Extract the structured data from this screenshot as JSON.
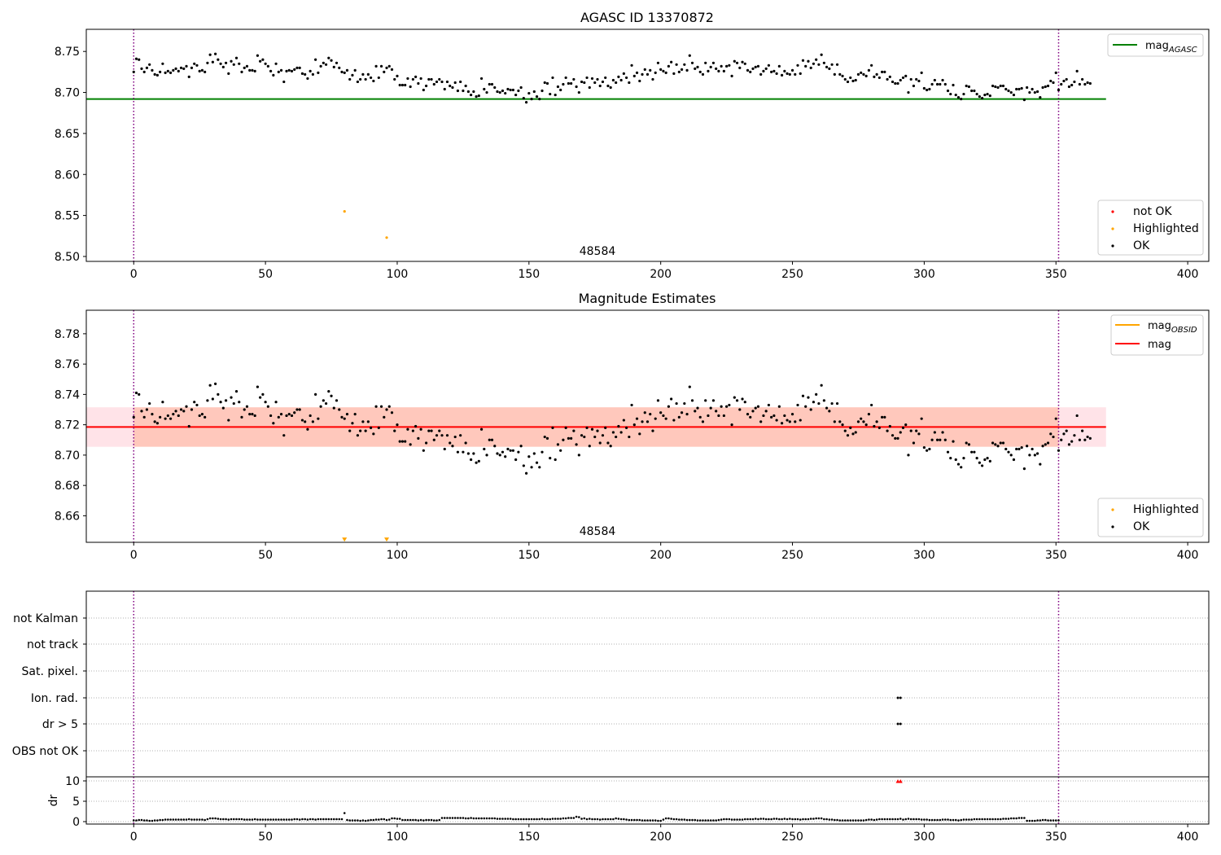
{
  "chart_data": [
    {
      "type": "scatter",
      "title": "AGASC ID 13370872",
      "xlim": [
        -18,
        408
      ],
      "ylim": [
        8.494,
        8.777
      ],
      "xticks": [
        0,
        50,
        100,
        150,
        200,
        250,
        300,
        350,
        400
      ],
      "yticks": [
        "8.50",
        "8.55",
        "8.60",
        "8.65",
        "8.70",
        "8.75"
      ],
      "vlines": [
        0,
        351
      ],
      "vline_color": "#800080",
      "hline": {
        "name": "mag_AGASC",
        "legend_main": "mag",
        "legend_sub": "AGASC",
        "y": 8.692,
        "x_range": [
          -18,
          369
        ],
        "color": "#008000"
      },
      "series": [
        {
          "name": "not OK",
          "color": "#ff0000",
          "points": []
        },
        {
          "name": "Highlighted",
          "color": "#ffa500",
          "points": [
            [
              80,
              8.555
            ],
            [
              96,
              8.523
            ]
          ]
        },
        {
          "name": "OK",
          "color": "#000000",
          "source": "ok_series"
        }
      ],
      "annotation": {
        "text": "48584",
        "x": 176,
        "y": 8.507
      },
      "legend_top": "top-right",
      "legend_bottom": "lower-right"
    },
    {
      "type": "scatter",
      "title": "Magnitude Estimates",
      "xlim": [
        -18,
        408
      ],
      "ylim": [
        8.6425,
        8.7955
      ],
      "xticks": [
        0,
        50,
        100,
        150,
        200,
        250,
        300,
        350,
        400
      ],
      "yticks": [
        "8.66",
        "8.68",
        "8.70",
        "8.72",
        "8.74",
        "8.76",
        "8.78"
      ],
      "vlines": [
        0,
        351
      ],
      "vline_color": "#800080",
      "lines": [
        {
          "name": "mag_OBSID",
          "legend_main": "mag",
          "legend_sub": "OBSID",
          "color": "#ffa500"
        },
        {
          "name": "mag",
          "legend_main": "mag",
          "y": 8.7185,
          "x_range": [
            -18,
            369
          ],
          "color": "#ff0000"
        }
      ],
      "bands": [
        {
          "color": "#ffc0cb",
          "opacity": 0.45,
          "y_range": [
            8.7055,
            8.7315
          ],
          "x_range": [
            -18,
            369
          ]
        },
        {
          "color": "#ffa07a",
          "opacity": 0.4,
          "y_range": [
            8.7055,
            8.7315
          ],
          "x_range": [
            0,
            351
          ]
        }
      ],
      "series": [
        {
          "name": "Highlighted",
          "color": "#ffa500",
          "marker": "triangle-down",
          "points": [
            [
              80,
              8.6435
            ],
            [
              96,
              8.6435
            ]
          ]
        },
        {
          "name": "OK",
          "color": "#000000",
          "source": "ok_series"
        }
      ],
      "annotation": {
        "text": "48584",
        "x": 176,
        "y": 8.65
      },
      "legend_top": "top-right",
      "legend_bottom": "lower-right"
    },
    {
      "type": "scatter",
      "title": "",
      "xlim": [
        -18,
        408
      ],
      "xticks": [
        0,
        50,
        100,
        150,
        200,
        250,
        300,
        350,
        400
      ],
      "vlines": [
        0,
        351
      ],
      "vline_color": "#800080",
      "flag_labels": [
        "not Kalman",
        "not track",
        "Sat. pixel.",
        "Ion. rad.",
        "dr > 5",
        "OBS not OK"
      ],
      "flag_points": {
        "Ion. rad.": [
          290,
          291
        ],
        "dr > 5": [
          290,
          291
        ]
      }
    },
    {
      "type": "scatter",
      "title": "",
      "ylabel": "dr",
      "xlim": [
        -18,
        408
      ],
      "ylim": [
        -0.6,
        11
      ],
      "xticks": [
        0,
        50,
        100,
        150,
        200,
        250,
        300,
        350,
        400
      ],
      "yticks": [
        "0",
        "5",
        "10"
      ],
      "vlines": [
        0,
        351
      ],
      "vline_color": "#800080",
      "series": [
        {
          "name": "dr",
          "color": "#000000",
          "source": "dr_series"
        },
        {
          "name": "dr > 10",
          "color": "#ff0000",
          "marker": "triangle-up",
          "points": [
            [
              290,
              9.9
            ],
            [
              291,
              9.9
            ]
          ]
        }
      ]
    }
  ],
  "ok_series": {
    "x_start": 0,
    "x_step": 1,
    "y": [
      8.725,
      8.741,
      8.74,
      8.729,
      8.725,
      8.73,
      8.734,
      8.727,
      8.722,
      8.721,
      8.725,
      8.735,
      8.724,
      8.726,
      8.724,
      8.727,
      8.729,
      8.726,
      8.73,
      8.729,
      8.732,
      8.719,
      8.73,
      8.735,
      8.733,
      8.726,
      8.727,
      8.725,
      8.736,
      8.746,
      8.737,
      8.747,
      8.74,
      8.735,
      8.731,
      8.736,
      8.723,
      8.738,
      8.734,
      8.742,
      8.735,
      8.725,
      8.73,
      8.732,
      8.727,
      8.727,
      8.726,
      8.745,
      8.738,
      8.74,
      8.735,
      8.732,
      8.726,
      8.721,
      8.735,
      8.725,
      8.727,
      8.713,
      8.726,
      8.727,
      8.726,
      8.728,
      8.73,
      8.73,
      8.723,
      8.722,
      8.717,
      8.726,
      8.722,
      8.74,
      8.724,
      8.732,
      8.736,
      8.734,
      8.742,
      8.739,
      8.731,
      8.736,
      8.73,
      8.725,
      8.724,
      8.727,
      8.716,
      8.721,
      8.727,
      8.713,
      8.716,
      8.722,
      8.716,
      8.722,
      8.718,
      8.714,
      8.732,
      8.718,
      8.732,
      8.725,
      8.73,
      8.732,
      8.728,
      8.716,
      8.72,
      8.709,
      8.709,
      8.709,
      8.717,
      8.707,
      8.716,
      8.719,
      8.711,
      8.717,
      8.703,
      8.708,
      8.716,
      8.716,
      8.71,
      8.713,
      8.716,
      8.713,
      8.704,
      8.713,
      8.708,
      8.706,
      8.712,
      8.702,
      8.713,
      8.702,
      8.708,
      8.701,
      8.697,
      8.701,
      8.695,
      8.696,
      8.717,
      8.704,
      8.7,
      8.71,
      8.71,
      8.706,
      8.701,
      8.7,
      8.702,
      8.699,
      8.704,
      8.703,
      8.703,
      8.697,
      8.702,
      8.706,
      8.693,
      8.688,
      8.699,
      8.692,
      8.701,
      8.695,
      8.692,
      8.702,
      8.712,
      8.711,
      8.698,
      8.718,
      8.697,
      8.707,
      8.703,
      8.71,
      8.718,
      8.711,
      8.711,
      8.716,
      8.707,
      8.7,
      8.713,
      8.712,
      8.718,
      8.706,
      8.717,
      8.712,
      8.716,
      8.708,
      8.713,
      8.718,
      8.708,
      8.706,
      8.715,
      8.712,
      8.719,
      8.715,
      8.723,
      8.718,
      8.712,
      8.733,
      8.72,
      8.724,
      8.714,
      8.722,
      8.728,
      8.722,
      8.727,
      8.716,
      8.724,
      8.736,
      8.728,
      8.726,
      8.724,
      8.732,
      8.737,
      8.723,
      8.734,
      8.725,
      8.728,
      8.734,
      8.727,
      8.745,
      8.736,
      8.729,
      8.731,
      8.725,
      8.722,
      8.736,
      8.726,
      8.731,
      8.736,
      8.729,
      8.726,
      8.732,
      8.726,
      8.732,
      8.733,
      8.72,
      8.738,
      8.736,
      8.73,
      8.737,
      8.735,
      8.727,
      8.725,
      8.729,
      8.731,
      8.732,
      8.722,
      8.726,
      8.729,
      8.733,
      8.725,
      8.726,
      8.723,
      8.732,
      8.721,
      8.726,
      8.723,
      8.722,
      8.727,
      8.722,
      8.733,
      8.723,
      8.739,
      8.732,
      8.738,
      8.73,
      8.735,
      8.74,
      8.734,
      8.746,
      8.736,
      8.731,
      8.729,
      8.734,
      8.722,
      8.734,
      8.722,
      8.72,
      8.716,
      8.713,
      8.718,
      8.714,
      8.715,
      8.722,
      8.724,
      8.722,
      8.72,
      8.727,
      8.733,
      8.719,
      8.722,
      8.718,
      8.725,
      8.725,
      8.716,
      8.719,
      8.713,
      8.711,
      8.711,
      8.715,
      8.718,
      8.72,
      8.7,
      8.716,
      8.708,
      8.716,
      8.714,
      8.724,
      8.705,
      8.703,
      8.704,
      8.71,
      8.715,
      8.71,
      8.71,
      8.715,
      8.71,
      8.702,
      8.698,
      8.709,
      8.697,
      8.694,
      8.692,
      8.698,
      8.708,
      8.707,
      8.702,
      8.702,
      8.698,
      8.695,
      8.693,
      8.697,
      8.698,
      8.696,
      8.708,
      8.707,
      8.706,
      8.708,
      8.708,
      8.704,
      8.702,
      8.7,
      8.697,
      8.704,
      8.704,
      8.705,
      8.691,
      8.706,
      8.7,
      8.704,
      8.7,
      8.701,
      8.694,
      8.706,
      8.707,
      8.708,
      8.714,
      8.712,
      8.724,
      8.703,
      8.71,
      8.714,
      8.716,
      8.707,
      8.709,
      8.713,
      8.726,
      8.71,
      8.716,
      8.71,
      8.712,
      8.711
    ]
  },
  "dr_series": {
    "x_start": 0,
    "x_step": 1,
    "y": [
      0.3,
      0.3,
      0.4,
      0.4,
      0.3,
      0.3,
      0.2,
      0.2,
      0.3,
      0.3,
      0.4,
      0.4,
      0.5,
      0.5,
      0.5,
      0.5,
      0.5,
      0.5,
      0.5,
      0.5,
      0.5,
      0.6,
      0.5,
      0.5,
      0.5,
      0.5,
      0.5,
      0.4,
      0.6,
      0.8,
      0.8,
      0.8,
      0.7,
      0.6,
      0.6,
      0.6,
      0.5,
      0.6,
      0.6,
      0.6,
      0.6,
      0.6,
      0.5,
      0.5,
      0.5,
      0.5,
      0.6,
      0.5,
      0.5,
      0.5,
      0.5,
      0.5,
      0.5,
      0.5,
      0.5,
      0.5,
      0.5,
      0.5,
      0.5,
      0.5,
      0.5,
      0.6,
      0.6,
      0.5,
      0.6,
      0.6,
      0.5,
      0.6,
      0.6,
      0.5,
      0.6,
      0.6,
      0.6,
      0.6,
      0.6,
      0.6,
      0.6,
      0.6,
      0.6,
      0.6,
      2.1,
      0.4,
      0.3,
      0.3,
      0.3,
      0.3,
      0.2,
      0.3,
      0.2,
      0.3,
      0.4,
      0.4,
      0.5,
      0.5,
      0.6,
      0.6,
      0.4,
      0.5,
      0.8,
      0.8,
      0.7,
      0.7,
      0.4,
      0.4,
      0.4,
      0.4,
      0.4,
      0.4,
      0.3,
      0.4,
      0.3,
      0.4,
      0.4,
      0.4,
      0.3,
      0.3,
      0.4,
      0.9,
      0.9,
      0.9,
      0.9,
      0.9,
      0.9,
      0.9,
      0.9,
      0.9,
      0.8,
      0.8,
      0.9,
      0.8,
      0.8,
      0.8,
      0.8,
      0.8,
      0.8,
      0.8,
      0.8,
      0.8,
      0.7,
      0.7,
      0.7,
      0.7,
      0.7,
      0.7,
      0.6,
      0.6,
      0.6,
      0.6,
      0.6,
      0.6,
      0.6,
      0.6,
      0.6,
      0.6,
      0.6,
      0.7,
      0.6,
      0.6,
      0.6,
      0.7,
      0.7,
      0.7,
      0.7,
      0.8,
      0.8,
      0.9,
      0.9,
      0.9,
      1.2,
      1.1,
      0.7,
      0.8,
      0.6,
      0.7,
      0.6,
      0.6,
      0.6,
      0.5,
      0.6,
      0.6,
      0.6,
      0.6,
      0.6,
      0.8,
      0.7,
      0.6,
      0.6,
      0.5,
      0.4,
      0.4,
      0.4,
      0.4,
      0.4,
      0.3,
      0.3,
      0.3,
      0.3,
      0.3,
      0.3,
      0.2,
      0.2,
      0.5,
      0.8,
      0.8,
      0.7,
      0.6,
      0.6,
      0.5,
      0.5,
      0.5,
      0.4,
      0.4,
      0.4,
      0.4,
      0.3,
      0.3,
      0.3,
      0.3,
      0.3,
      0.3,
      0.3,
      0.3,
      0.4,
      0.5,
      0.6,
      0.6,
      0.6,
      0.5,
      0.5,
      0.5,
      0.5,
      0.5,
      0.6,
      0.6,
      0.6,
      0.6,
      0.7,
      0.6,
      0.7,
      0.7,
      0.6,
      0.6,
      0.6,
      0.7,
      0.7,
      0.6,
      0.6,
      0.7,
      0.6,
      0.7,
      0.6,
      0.6,
      0.6,
      0.5,
      0.6,
      0.6,
      0.6,
      0.7,
      0.7,
      0.8,
      0.8,
      0.8,
      0.6,
      0.6,
      0.5,
      0.5,
      0.4,
      0.4,
      0.3,
      0.3,
      0.3,
      0.3,
      0.3,
      0.3,
      0.3,
      0.3,
      0.3,
      0.3,
      0.4,
      0.5,
      0.5,
      0.4,
      0.5,
      0.6,
      0.6,
      0.6,
      0.6,
      0.6,
      0.6,
      0.6,
      0.6,
      0.7,
      0.5,
      0.6,
      0.7,
      0.6,
      0.6,
      0.6,
      0.6,
      0.5,
      0.5,
      0.5,
      0.4,
      0.4,
      0.4,
      0.4,
      0.4,
      0.5,
      0.5,
      0.5,
      0.4,
      0.4,
      0.4,
      0.3,
      0.4,
      0.5,
      0.5,
      0.5,
      0.5,
      0.6,
      0.6,
      0.6,
      0.6,
      0.6,
      0.6,
      0.6,
      0.6,
      0.6,
      0.6,
      0.6,
      0.7,
      0.7,
      0.7,
      0.8,
      0.8,
      0.8,
      0.9,
      0.9,
      0.9,
      0.2,
      0.2,
      0.2,
      0.2,
      0.3,
      0.3,
      0.4,
      0.4,
      0.3,
      0.3,
      0.3,
      0.3,
      0.3
    ]
  }
}
